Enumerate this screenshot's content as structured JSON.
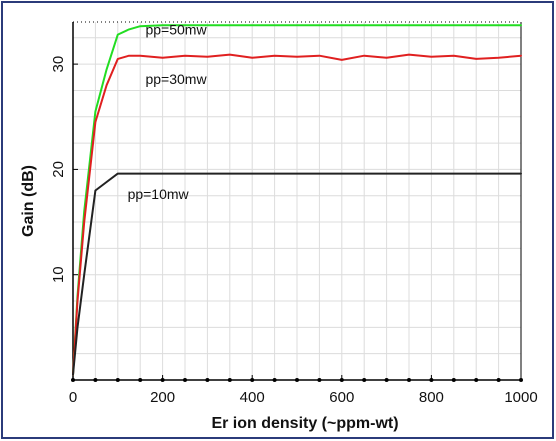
{
  "chart_data": {
    "type": "line",
    "title": "",
    "xlabel": "Er ion density (~ppm-wt)",
    "ylabel": "Gain (dB)",
    "xlim": [
      0,
      1000
    ],
    "ylim": [
      0,
      34
    ],
    "xticks": [
      0,
      200,
      400,
      600,
      800,
      1000
    ],
    "yticks": [
      10,
      20,
      30
    ],
    "grid": true,
    "series": [
      {
        "name": "pp=50mw",
        "color": "#22dd22",
        "style": "solid",
        "x": [
          0,
          10,
          25,
          50,
          75,
          100,
          125,
          150,
          200,
          300,
          400,
          500,
          600,
          700,
          800,
          900,
          1000
        ],
        "y": [
          0.5,
          8,
          16,
          25.5,
          29.5,
          32.8,
          33.3,
          33.6,
          33.7,
          33.7,
          33.7,
          33.7,
          33.7,
          33.7,
          33.7,
          33.7,
          33.7
        ]
      },
      {
        "name": "pp=30mw",
        "color": "#e02020",
        "style": "solid",
        "x": [
          0,
          10,
          25,
          50,
          75,
          100,
          125,
          150,
          200,
          250,
          300,
          350,
          400,
          450,
          500,
          550,
          600,
          650,
          700,
          750,
          800,
          850,
          900,
          950,
          1000
        ],
        "y": [
          0.5,
          7.5,
          15,
          24.5,
          28,
          30.5,
          30.8,
          30.8,
          30.6,
          30.8,
          30.7,
          30.9,
          30.6,
          30.8,
          30.7,
          30.8,
          30.4,
          30.8,
          30.6,
          30.9,
          30.7,
          30.8,
          30.5,
          30.6,
          30.8
        ]
      },
      {
        "name": "pp=10mw",
        "color": "#222222",
        "style": "solid",
        "x": [
          0,
          10,
          25,
          50,
          75,
          100,
          150,
          200,
          400,
          600,
          800,
          1000
        ],
        "y": [
          0.5,
          5,
          10,
          18,
          18.8,
          19.6,
          19.6,
          19.6,
          19.6,
          19.6,
          19.6,
          19.6
        ]
      }
    ],
    "series_labels": [
      {
        "text": "pp=50mw",
        "x": 230,
        "y": 32.8
      },
      {
        "text": "pp=30mw",
        "x": 230,
        "y": 28.1
      },
      {
        "text": "pp=10mw",
        "x": 190,
        "y": 17.2
      }
    ]
  }
}
